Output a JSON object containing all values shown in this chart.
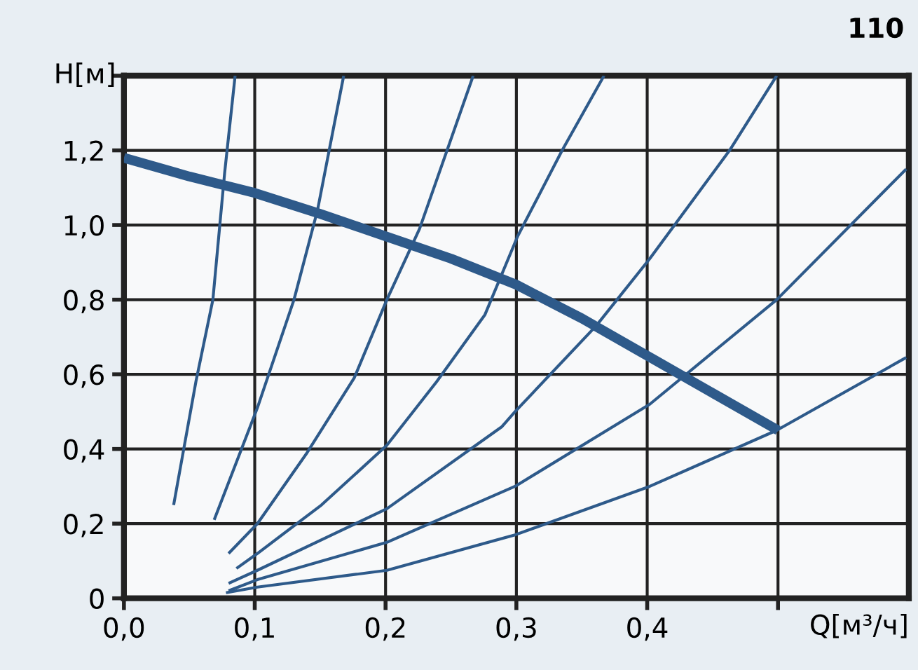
{
  "chart_data": {
    "type": "line",
    "xlabel": "Q[м³/ч]",
    "ylabel": "H[м]",
    "annotations": [
      "110"
    ],
    "xlim": [
      0,
      0.6
    ],
    "ylim": [
      0,
      1.4
    ],
    "xticks": [
      {
        "value": 0,
        "label": "0,0"
      },
      {
        "value": 0.1,
        "label": "0,1"
      },
      {
        "value": 0.2,
        "label": "0,2"
      },
      {
        "value": 0.3,
        "label": "0,3"
      },
      {
        "value": 0.4,
        "label": "0,4"
      },
      {
        "value": 0.5,
        "label": null
      }
    ],
    "yticks": [
      {
        "value": 0,
        "label": "0"
      },
      {
        "value": 0.2,
        "label": "0,2"
      },
      {
        "value": 0.4,
        "label": "0,4"
      },
      {
        "value": 0.6,
        "label": "0,6"
      },
      {
        "value": 0.8,
        "label": "0,8"
      },
      {
        "value": 1.0,
        "label": "1,0"
      },
      {
        "value": 1.2,
        "label": "1,2"
      },
      {
        "value": 1.4,
        "label": null
      }
    ],
    "grid": true,
    "legend": false,
    "marker": "none",
    "line_style": "solid",
    "series": [
      {
        "color": "#2e5a8a",
        "x": [
          0.038,
          0.055,
          0.068,
          0.077,
          0.085
        ],
        "values": [
          0.25,
          0.58,
          0.8,
          1.14,
          1.4
        ]
      },
      {
        "color": "#2e5a8a",
        "x": [
          0.069,
          0.102,
          0.13,
          0.148,
          0.168
        ],
        "values": [
          0.21,
          0.51,
          0.8,
          1.04,
          1.4
        ]
      },
      {
        "color": "#2e5a8a",
        "x": [
          0.08,
          0.102,
          0.14,
          0.176,
          0.201,
          0.226,
          0.267
        ],
        "values": [
          0.12,
          0.2,
          0.39,
          0.59,
          0.8,
          0.99,
          1.4
        ]
      },
      {
        "color": "#2e5a8a",
        "x": [
          0.086,
          0.102,
          0.151,
          0.201,
          0.239,
          0.276,
          0.301,
          0.335,
          0.367
        ],
        "values": [
          0.08,
          0.12,
          0.25,
          0.41,
          0.58,
          0.76,
          0.97,
          1.2,
          1.4
        ]
      },
      {
        "color": "#2e5a8a",
        "x": [
          0.08,
          0.102,
          0.201,
          0.289,
          0.299,
          0.361,
          0.402,
          0.463,
          0.499
        ],
        "values": [
          0.04,
          0.075,
          0.24,
          0.46,
          0.5,
          0.73,
          0.91,
          1.2,
          1.4
        ]
      },
      {
        "color": "#2e5a8a",
        "x": [
          0.08,
          0.102,
          0.201,
          0.299,
          0.402,
          0.499,
          0.598
        ],
        "values": [
          0.02,
          0.05,
          0.15,
          0.3,
          0.52,
          0.8,
          1.15
        ]
      },
      {
        "color": "#2e5a8a",
        "x": [
          0.078,
          0.102,
          0.201,
          0.299,
          0.402,
          0.499,
          0.598
        ],
        "values": [
          0.015,
          0.03,
          0.075,
          0.17,
          0.3,
          0.45,
          0.645
        ]
      },
      {
        "color": "#2e5a8a",
        "x": [
          0,
          0.05,
          0.1,
          0.15,
          0.2,
          0.25,
          0.3,
          0.35,
          0.4,
          0.45,
          0.5
        ],
        "values": [
          1.18,
          1.13,
          1.086,
          1.03,
          0.97,
          0.91,
          0.84,
          0.75,
          0.65,
          0.55,
          0.45
        ]
      }
    ]
  }
}
